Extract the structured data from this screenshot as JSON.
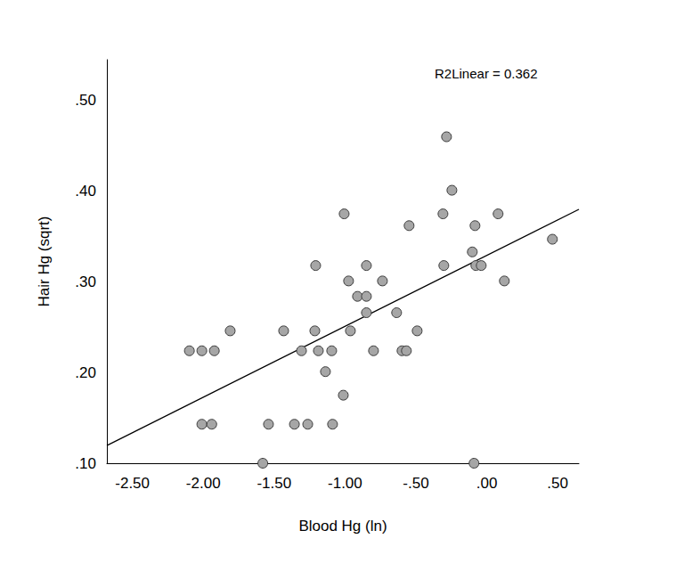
{
  "chart_data": {
    "type": "scatter",
    "x_label": "Blood Hg (ln)",
    "y_label": "Hair Hg (sqrt)",
    "annotation": "R2Linear = 0.362",
    "xlim": [
      -2.68,
      0.65
    ],
    "ylim": [
      0.1,
      0.545
    ],
    "xticks": [
      {
        "value": -2.5,
        "label": "-2.50"
      },
      {
        "value": -2.0,
        "label": "-2.00"
      },
      {
        "value": -1.5,
        "label": "-1.50"
      },
      {
        "value": -1.0,
        "label": "-1.00"
      },
      {
        "value": -0.5,
        "label": "-.50"
      },
      {
        "value": 0,
        "label": ".00"
      },
      {
        "value": 0.5,
        "label": ".50"
      }
    ],
    "yticks": [
      {
        "value": 0.1,
        "label": ".10"
      },
      {
        "value": 0.2,
        "label": ".20"
      },
      {
        "value": 0.3,
        "label": ".30"
      },
      {
        "value": 0.4,
        "label": ".40"
      },
      {
        "value": 0.5,
        "label": ".50"
      }
    ],
    "grid": false,
    "series": [
      {
        "type": "scatter",
        "color": "#a6a6a6",
        "marker": "circle",
        "x": [
          -2.098,
          -2.01,
          -1.922,
          -2.01,
          -1.94,
          -1.81,
          -1.58,
          -1.54,
          -1.433,
          -1.357,
          -1.307,
          -1.263,
          -1.213,
          -1.207,
          -1.188,
          -1.138,
          -1.094,
          -1.088,
          -1.006,
          -1.012,
          -0.975,
          -0.962,
          -0.912,
          -0.849,
          -0.849,
          -0.849,
          -0.799,
          -0.736,
          -0.636,
          -0.598,
          -0.567,
          -0.548,
          -0.491,
          -0.309,
          -0.303,
          -0.284,
          -0.246,
          -0.102,
          -0.09,
          -0.083,
          -0.077,
          -0.039,
          0.08,
          0.124,
          0.463
        ],
        "values": [
          0.224,
          0.224,
          0.224,
          0.143,
          0.143,
          0.246,
          0.1,
          0.143,
          0.246,
          0.143,
          0.224,
          0.143,
          0.246,
          0.318,
          0.224,
          0.201,
          0.224,
          0.143,
          0.375,
          0.175,
          0.301,
          0.246,
          0.284,
          0.318,
          0.284,
          0.266,
          0.224,
          0.301,
          0.266,
          0.224,
          0.224,
          0.362,
          0.246,
          0.375,
          0.318,
          0.46,
          0.401,
          0.333,
          0.1,
          0.362,
          0.318,
          0.318,
          0.375,
          0.301,
          0.347
        ]
      },
      {
        "type": "line",
        "color": "#000000",
        "line_style": "solid",
        "marker": "none",
        "x": [
          -2.68,
          0.65
        ],
        "values": [
          0.1196,
          0.38
        ]
      }
    ]
  }
}
